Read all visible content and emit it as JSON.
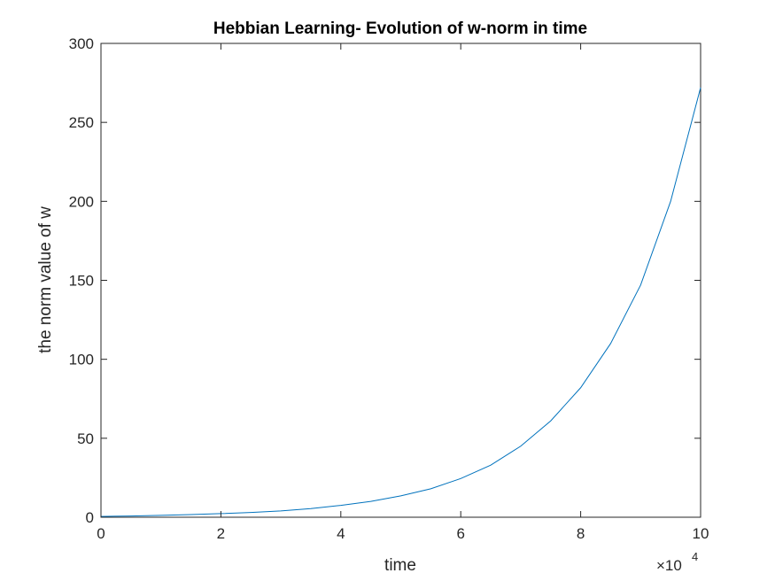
{
  "chart_data": {
    "type": "line",
    "title": "Hebbian Learning- Evolution of w-norm in time",
    "xlabel": "time",
    "ylabel": "the norm value of w",
    "x_exponent_label": "×10",
    "x_exponent_power": "4",
    "xlim": [
      0,
      100000
    ],
    "ylim": [
      0,
      300
    ],
    "xticks": [
      0,
      20000,
      40000,
      60000,
      80000,
      100000
    ],
    "xtick_labels": [
      "0",
      "2",
      "4",
      "6",
      "8",
      "10"
    ],
    "yticks": [
      0,
      50,
      100,
      150,
      200,
      250,
      300
    ],
    "ytick_labels": [
      "0",
      "50",
      "100",
      "150",
      "200",
      "250",
      "300"
    ],
    "grid": false,
    "series": [
      {
        "color": "#0072BD",
        "x": [
          0,
          5000,
          10000,
          15000,
          20000,
          25000,
          30000,
          35000,
          40000,
          45000,
          50000,
          55000,
          60000,
          65000,
          70000,
          75000,
          80000,
          85000,
          90000,
          95000,
          100000
        ],
        "y": [
          0.5,
          0.8,
          1.2,
          1.7,
          2.3,
          3.0,
          4.0,
          5.5,
          7.5,
          10.0,
          13.5,
          18.0,
          24.5,
          33.0,
          45.0,
          61.0,
          82.0,
          110.0,
          147.0,
          200.0,
          272.0
        ]
      }
    ]
  }
}
